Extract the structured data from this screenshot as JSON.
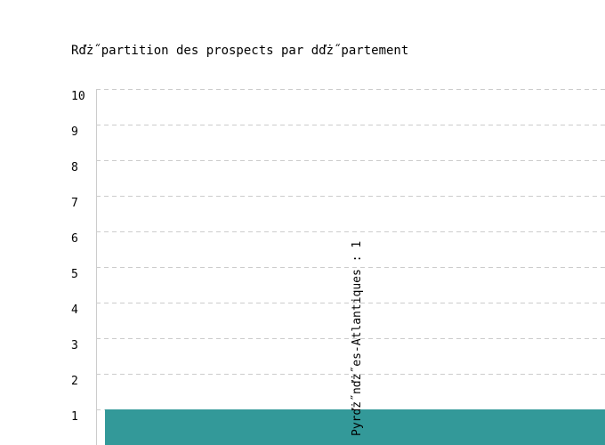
{
  "chart_data": {
    "type": "bar",
    "title": "Rďż˝partition des prospects par dďż˝partement",
    "categories": [
      "Pyrďż˝nďż˝es-Atlantiques"
    ],
    "values": [
      1
    ],
    "data_labels": [
      "Pyrďż˝nďż˝es-Atlantiques : 1"
    ],
    "ylim": [
      0,
      10
    ],
    "yticks": [
      1,
      2,
      3,
      4,
      5,
      6,
      7,
      8,
      9,
      10
    ],
    "grid": true,
    "bar_color": "#339999",
    "grid_color": "#cccccc"
  }
}
